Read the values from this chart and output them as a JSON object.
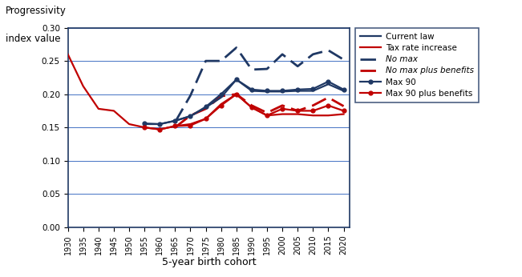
{
  "x": [
    1930,
    1935,
    1940,
    1945,
    1950,
    1955,
    1960,
    1965,
    1970,
    1975,
    1980,
    1985,
    1990,
    1995,
    2000,
    2005,
    2010,
    2015,
    2020
  ],
  "current_law": [
    null,
    null,
    null,
    null,
    null,
    0.155,
    0.155,
    0.16,
    0.167,
    0.18,
    0.195,
    0.222,
    0.205,
    0.204,
    0.204,
    0.205,
    0.205,
    0.215,
    0.205
  ],
  "tax_rate_increase": [
    0.26,
    0.212,
    0.178,
    0.175,
    0.155,
    0.15,
    0.147,
    0.152,
    0.155,
    0.163,
    0.185,
    0.2,
    0.18,
    0.168,
    0.17,
    0.17,
    0.168,
    0.168,
    0.17
  ],
  "no_max": [
    null,
    null,
    null,
    null,
    null,
    null,
    null,
    0.158,
    0.198,
    0.25,
    0.25,
    0.27,
    0.237,
    0.238,
    0.26,
    0.242,
    0.26,
    0.266,
    0.252
  ],
  "no_max_plus_benefits": [
    null,
    null,
    null,
    null,
    null,
    null,
    null,
    0.15,
    0.168,
    0.178,
    0.197,
    0.2,
    0.183,
    0.172,
    0.183,
    0.175,
    0.183,
    0.195,
    0.182
  ],
  "max_90": [
    null,
    null,
    null,
    null,
    null,
    0.156,
    0.155,
    0.16,
    0.167,
    0.181,
    0.2,
    0.222,
    0.207,
    0.205,
    0.205,
    0.207,
    0.208,
    0.219,
    0.207
  ],
  "max_90_plus_benefits": [
    null,
    null,
    null,
    null,
    null,
    0.15,
    0.147,
    0.152,
    0.153,
    0.163,
    0.183,
    0.2,
    0.18,
    0.168,
    0.178,
    0.175,
    0.175,
    0.183,
    0.175
  ],
  "title_line1": "Progressivity",
  "title_line2": "index value",
  "xlabel": "5-year birth cohort",
  "ylim": [
    0.0,
    0.3
  ],
  "yticks": [
    0.0,
    0.05,
    0.1,
    0.15,
    0.2,
    0.25,
    0.3
  ],
  "xticks": [
    1930,
    1935,
    1940,
    1945,
    1950,
    1955,
    1960,
    1965,
    1970,
    1975,
    1980,
    1985,
    1990,
    1995,
    2000,
    2005,
    2010,
    2015,
    2020
  ],
  "color_blue": "#1F3864",
  "color_red": "#C00000",
  "legend_labels": [
    "Current law",
    "Tax rate increase",
    "No max",
    "No max plus benefits",
    "Max 90",
    "Max 90 plus benefits"
  ]
}
